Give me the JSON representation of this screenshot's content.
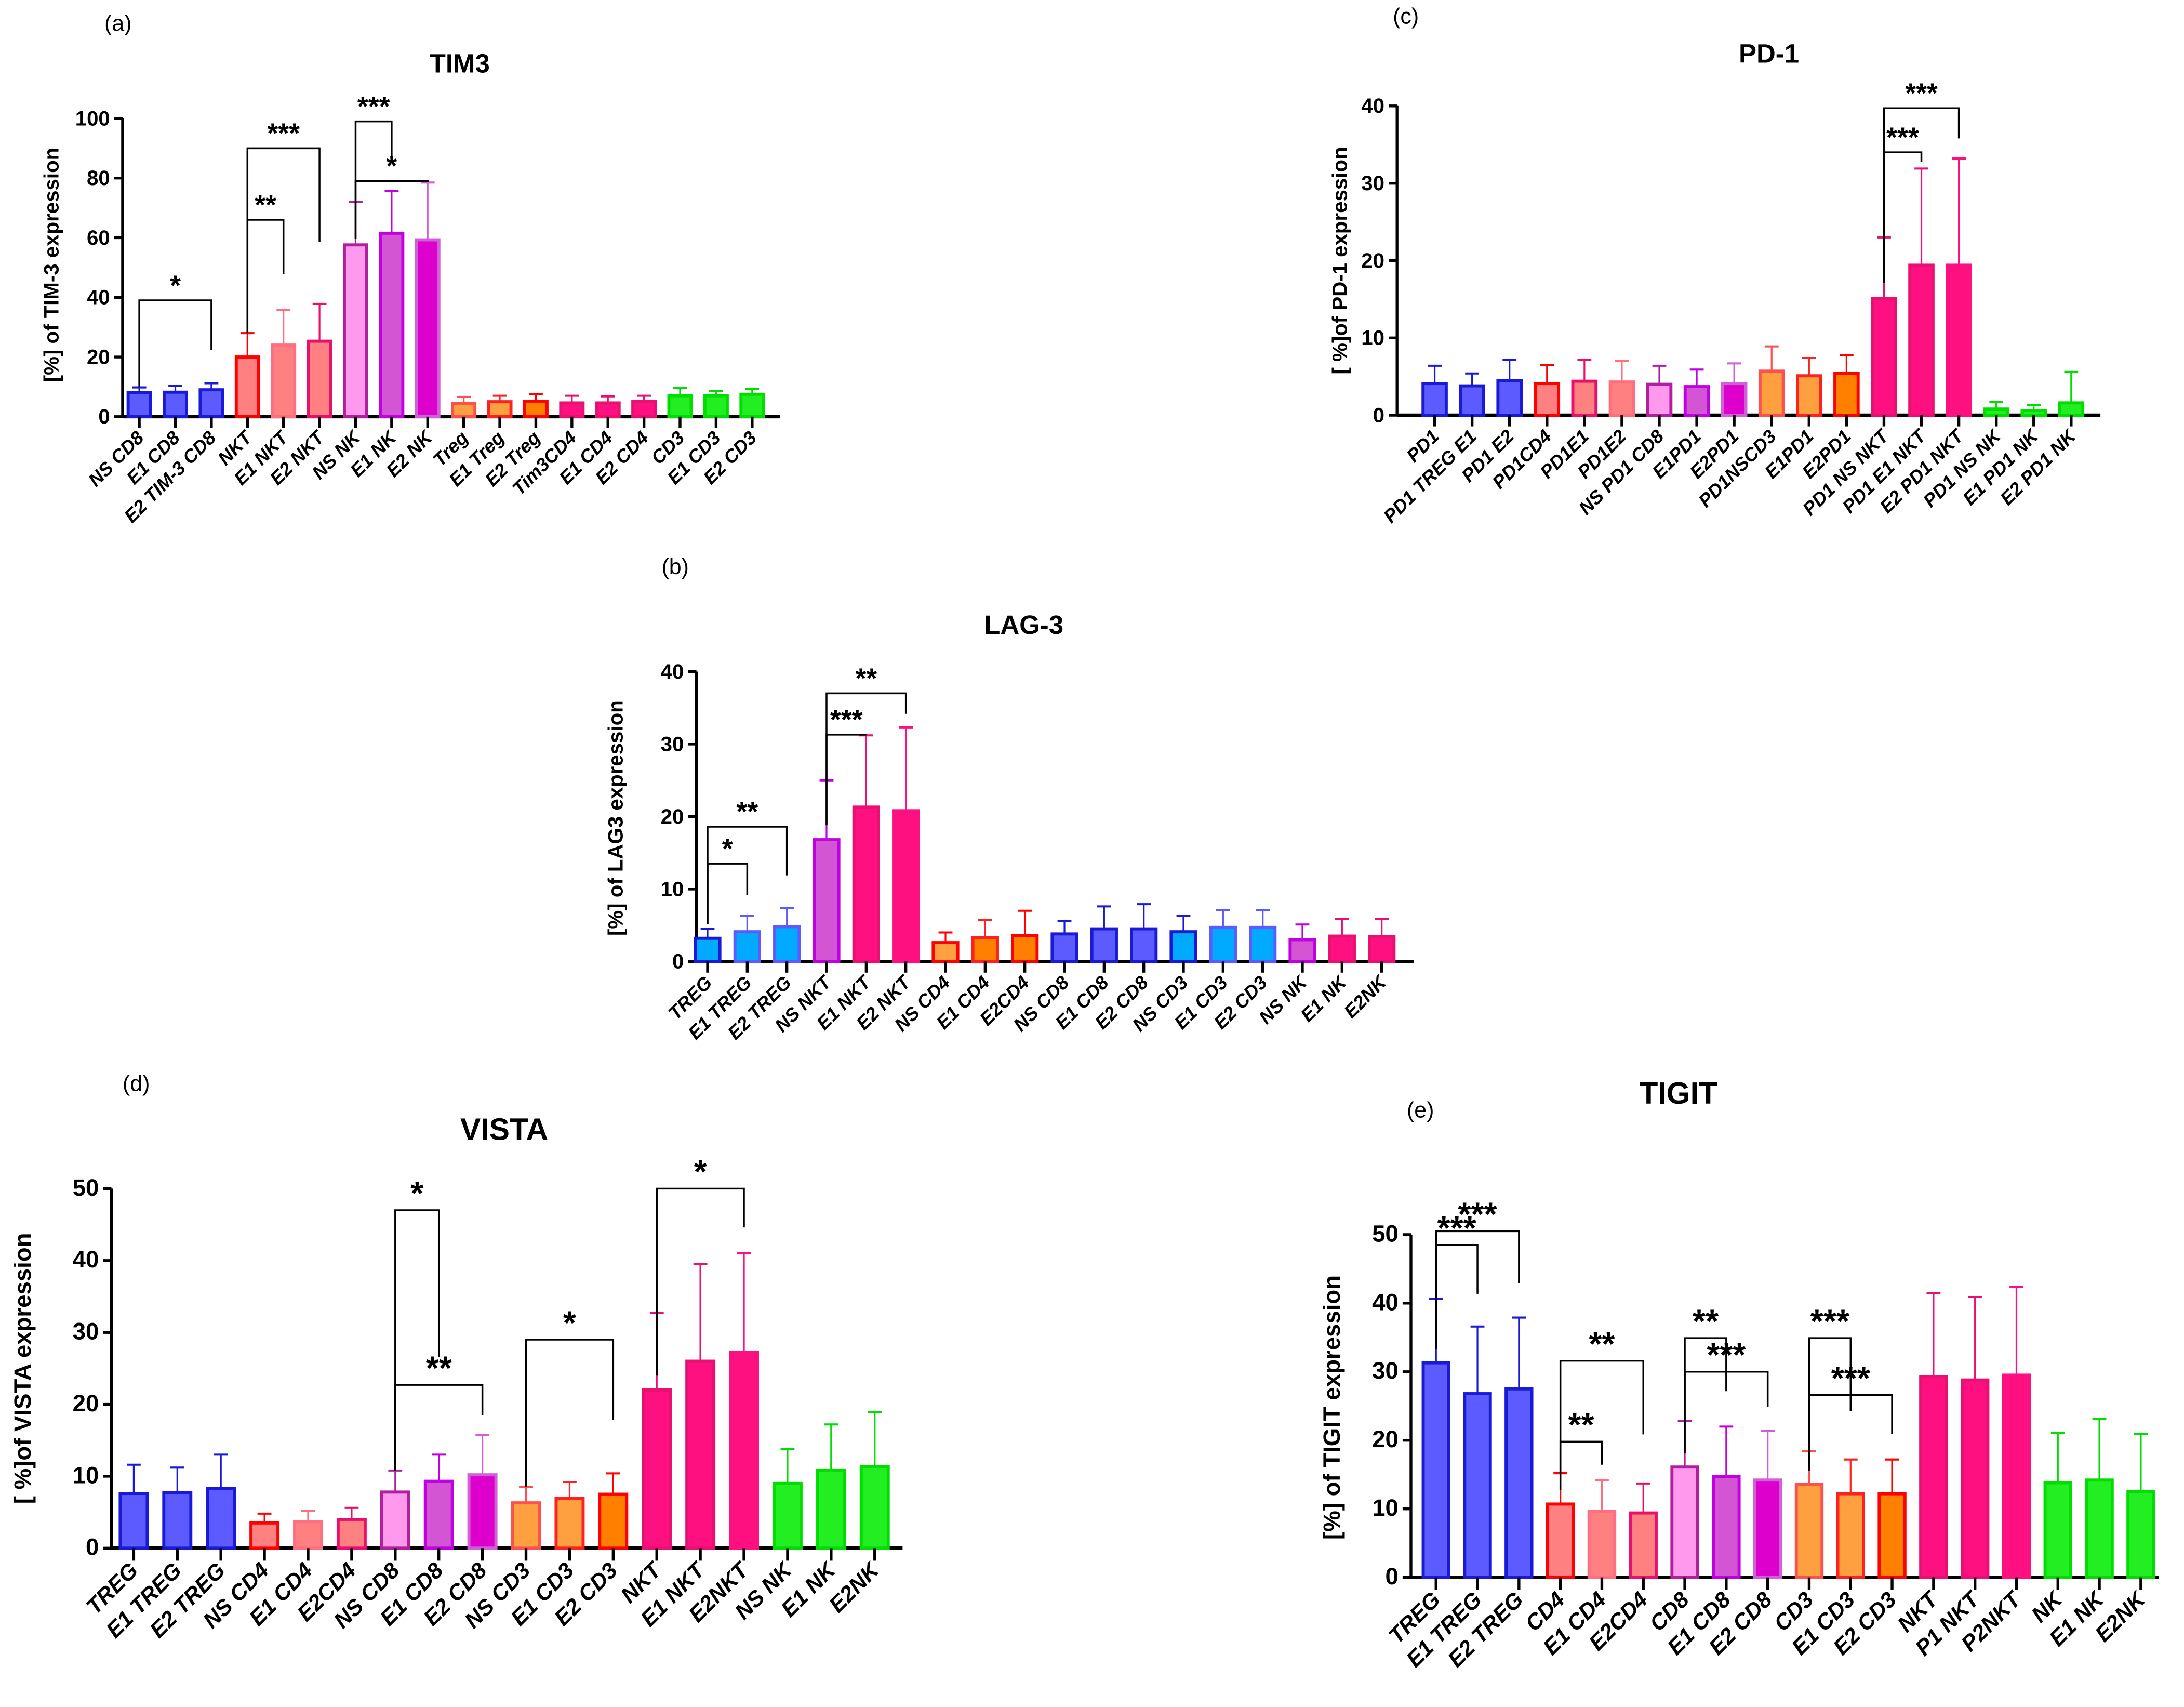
{
  "chart_data": [
    {
      "type": "bar",
      "panel_label": "(a)",
      "title": "TIM3",
      "ylabel": "[%] of TIM-3 expression",
      "ylim": [
        0,
        100
      ],
      "yticks": [
        "0",
        "20",
        "40",
        "60",
        "80",
        "100"
      ],
      "categories": [
        "NS CD8",
        "E1 CD8",
        "E2 TIM-3 CD8",
        "NKT",
        "E1 NKT",
        "E2 NKT",
        "NS NK",
        "E1 NK",
        "E2  NK",
        "Treg",
        "E1 Treg",
        "E2 Treg",
        "Tim3CD4",
        "E1 CD4",
        "E2 CD4",
        "CD3",
        "E1 CD3",
        "E2 CD3"
      ],
      "values": [
        8,
        8.2,
        9,
        20,
        24,
        25.3,
        57.6,
        61.5,
        59.3,
        4.5,
        5,
        5.2,
        4.6,
        4.6,
        5.2,
        7,
        7,
        7.5
      ],
      "error_upper": [
        9.8,
        10.3,
        11.2,
        28,
        35.7,
        37.8,
        72,
        75.6,
        78.5,
        6.6,
        7,
        7.6,
        7,
        6.8,
        7,
        9.6,
        8.6,
        9.2
      ],
      "fill": [
        "#5b5bff",
        "#5b5bff",
        "#5b5bff",
        "#ff8080",
        "#ff8080",
        "#ff8080",
        "#ff99ee",
        "#d455d4",
        "#dd00cc",
        "#ffa040",
        "#ffa040",
        "#ff8000",
        "#ff1080",
        "#ff1080",
        "#ff1080",
        "#22ee22",
        "#22ee22",
        "#22ee22"
      ],
      "stroke": [
        "#1a1ad6",
        "#1a1ad6",
        "#1a1ad6",
        "#ff0000",
        "#ff6f80",
        "#e8106b",
        "#b0209c",
        "#c000e0",
        "#d060d8",
        "#ff5050",
        "#ff2020",
        "#ff0000",
        "#e81070",
        "#e81070",
        "#e81070",
        "#00dd00",
        "#00dd00",
        "#00dd00"
      ],
      "significance": [
        {
          "from": 0,
          "to": 2,
          "label": "*",
          "y": 39
        },
        {
          "from": 3,
          "to": 4,
          "label": "**",
          "y": 66
        },
        {
          "from": 3,
          "to": 5,
          "label": "***",
          "y": 90
        },
        {
          "from": 6,
          "to": 7,
          "label": "***",
          "y": 99
        },
        {
          "from": 6,
          "to": 8,
          "label": "*",
          "y": 79
        }
      ]
    },
    {
      "type": "bar",
      "panel_label": "(c)",
      "title": "PD-1",
      "ylabel": "[ %]of PD-1 expression",
      "ylim": [
        0,
        40
      ],
      "yticks": [
        "0",
        "10",
        "20",
        "30",
        "40"
      ],
      "categories": [
        "PD1",
        "PD1 TREG E1",
        "PD1 E2",
        "PD1CD4",
        "PD1E1",
        "PD1E2",
        "NS PD1 CD8",
        "E1PD1",
        "E2PD1",
        "PD1NSCD3",
        "E1PD1",
        "E2PD1",
        "PD1 NS NKT",
        "PD1 E1  NKT",
        "E2 PD1 NKT",
        "PD1 NS NK",
        "E1 PD1 NK",
        "E2 PD1 NK"
      ],
      "values": [
        4.1,
        3.8,
        4.5,
        4.1,
        4.4,
        4.3,
        4.0,
        3.7,
        4.1,
        5.7,
        5.1,
        5.4,
        15.1,
        19.4,
        19.4,
        0.8,
        0.6,
        1.6
      ],
      "error_upper": [
        6.4,
        5.4,
        7.2,
        6.5,
        7.2,
        7.0,
        6.4,
        5.9,
        6.7,
        8.9,
        7.4,
        7.8,
        23.0,
        31.9,
        33.2,
        1.7,
        1.3,
        5.6
      ],
      "fill": [
        "#5b5bff",
        "#5b5bff",
        "#5b5bff",
        "#ff8080",
        "#ff8080",
        "#ff8080",
        "#ff99ee",
        "#d455d4",
        "#dd00cc",
        "#ffa040",
        "#ffa040",
        "#ff8000",
        "#ff1080",
        "#ff1080",
        "#ff1080",
        "#22ee22",
        "#22ee22",
        "#22ee22"
      ],
      "stroke": [
        "#1a1ad6",
        "#1a1ad6",
        "#1a1ad6",
        "#ff0000",
        "#e8106b",
        "#ff6f80",
        "#b0209c",
        "#c000e0",
        "#d060d8",
        "#ff5050",
        "#ff2020",
        "#ff0000",
        "#e81070",
        "#e81070",
        "#ff1080",
        "#00dd00",
        "#00dd00",
        "#00dd00"
      ],
      "significance": [
        {
          "from": 12,
          "to": 13,
          "label": "***",
          "y": 34
        },
        {
          "from": 12,
          "to": 14,
          "label": "***",
          "y": 39.7
        }
      ]
    },
    {
      "type": "bar",
      "panel_label": "(b)",
      "title": "LAG-3",
      "ylabel": "[%] of LAG3 expression",
      "ylim": [
        0,
        40
      ],
      "yticks": [
        "0",
        "10",
        "20",
        "30",
        "40"
      ],
      "categories": [
        "TREG",
        "E1 TREG",
        "E2 TREG",
        "NS NKT",
        "E1 NKT",
        "E2 NKT",
        "NS CD4",
        "E1 CD4",
        "E2CD4",
        "NS CD8",
        "E1 CD8",
        "E2 CD8",
        "NS CD3",
        "E1 CD3",
        "E2 CD3",
        "NS NK",
        "E1 NK",
        "E2NK"
      ],
      "values": [
        3.2,
        4.1,
        4.8,
        16.8,
        21.3,
        20.8,
        2.6,
        3.3,
        3.6,
        3.8,
        4.5,
        4.5,
        4.1,
        4.7,
        4.7,
        3.0,
        3.5,
        3.4
      ],
      "error_upper": [
        4.5,
        6.3,
        7.4,
        25.0,
        31.2,
        32.3,
        4.0,
        5.7,
        7.0,
        5.6,
        7.6,
        7.9,
        6.3,
        7.1,
        7.1,
        5.1,
        5.9,
        5.9
      ],
      "fill": [
        "#00aaff",
        "#00aaff",
        "#00aaff",
        "#d455d4",
        "#ff1080",
        "#ff1080",
        "#ffa040",
        "#ff8000",
        "#ff8000",
        "#5b5bff",
        "#5b5bff",
        "#5b5bff",
        "#00aaff",
        "#00aaff",
        "#00aaff",
        "#d455d4",
        "#ff1080",
        "#ff1080"
      ],
      "stroke": [
        "#1a1ad6",
        "#5b5bff",
        "#5b5bff",
        "#c000e0",
        "#e81070",
        "#ff1080",
        "#ff0000",
        "#ff2020",
        "#ff0000",
        "#1a1ad6",
        "#1a1ad6",
        "#1a1ad6",
        "#1a1ad6",
        "#5b5bff",
        "#5b5bff",
        "#c000e0",
        "#e81070",
        "#e81070"
      ],
      "significance": [
        {
          "from": 0,
          "to": 1,
          "label": "*",
          "y": 13.5
        },
        {
          "from": 0,
          "to": 2,
          "label": "**",
          "y": 18.6
        },
        {
          "from": 3,
          "to": 4,
          "label": "***",
          "y": 31.3
        },
        {
          "from": 3,
          "to": 5,
          "label": "**",
          "y": 37
        }
      ]
    },
    {
      "type": "bar",
      "panel_label": "(d)",
      "title": "VISTA",
      "ylabel": "[ %]of VISTA expression",
      "ylim": [
        0,
        50
      ],
      "yticks": [
        "0",
        "10",
        "20",
        "30",
        "40",
        "50"
      ],
      "categories": [
        "TREG",
        "E1 TREG",
        "E2 TREG",
        "NS CD4",
        "E1 CD4",
        "E2CD4",
        "NS CD8",
        "E1 CD8",
        "E2 CD8",
        "NS CD3",
        "E1 CD3",
        "E2 CD3",
        "NKT",
        "E1 NKT",
        "E2NKT",
        "NS NK",
        "E1 NK",
        "E2NK"
      ],
      "values": [
        7.6,
        7.7,
        8.3,
        3.5,
        3.7,
        4.0,
        7.8,
        9.3,
        10.2,
        6.3,
        6.9,
        7.5,
        22.0,
        26.0,
        27.2,
        9.0,
        10.8,
        11.3
      ],
      "error_upper": [
        11.6,
        11.2,
        13.0,
        4.8,
        5.2,
        5.6,
        10.8,
        13.0,
        15.7,
        8.5,
        9.2,
        10.4,
        32.7,
        39.5,
        41.0,
        13.8,
        17.2,
        18.9
      ],
      "fill": [
        "#5b5bff",
        "#5b5bff",
        "#5b5bff",
        "#ff8080",
        "#ff8080",
        "#ff8080",
        "#ff99ee",
        "#d455d4",
        "#dd00cc",
        "#ffa040",
        "#ffa040",
        "#ff8000",
        "#ff1080",
        "#ff1080",
        "#ff1080",
        "#22ee22",
        "#22ee22",
        "#22ee22"
      ],
      "stroke": [
        "#1a1ad6",
        "#1a1ad6",
        "#1a1ad6",
        "#ff0000",
        "#ff6f80",
        "#e8106b",
        "#b0209c",
        "#c000e0",
        "#d060d8",
        "#ff5050",
        "#ff2020",
        "#ff0000",
        "#e81070",
        "#e81070",
        "#ff1080",
        "#00dd00",
        "#00dd00",
        "#00dd00"
      ],
      "significance": [
        {
          "from": 6,
          "to": 7,
          "label": "*",
          "y": 47
        },
        {
          "from": 6,
          "to": 8,
          "label": "**",
          "y": 22.7
        },
        {
          "from": 9,
          "to": 11,
          "label": "*",
          "y": 29
        },
        {
          "from": 12,
          "to": 14,
          "label": "*",
          "y": 50
        }
      ]
    },
    {
      "type": "bar",
      "panel_label": "(e)",
      "title": "TIGIT",
      "ylabel": "[%] of TIGIT expression",
      "ylim": [
        0,
        50
      ],
      "yticks": [
        "0",
        "10",
        "20",
        "30",
        "40",
        "50"
      ],
      "categories": [
        "TREG",
        "E1 TREG",
        "E2 TREG",
        "CD4",
        "E1 CD4",
        "E2CD4",
        "CD8",
        "E1 CD8",
        "E2 CD8",
        "CD3",
        "E1 CD3",
        "E2 CD3",
        "NKT",
        "P1 NKT",
        "P2NKT",
        "NK",
        "E1 NK",
        "E2NK"
      ],
      "values": [
        31.3,
        26.8,
        27.5,
        10.7,
        9.6,
        9.4,
        16.1,
        14.7,
        14.2,
        13.6,
        12.2,
        12.2,
        29.3,
        28.8,
        29.5,
        13.8,
        14.2,
        12.5
      ],
      "error_upper": [
        40.6,
        36.6,
        37.9,
        15.2,
        14.2,
        13.7,
        22.8,
        22.0,
        21.4,
        18.4,
        17.2,
        17.2,
        41.5,
        40.9,
        42.4,
        21.1,
        23.1,
        20.9
      ],
      "fill": [
        "#5b5bff",
        "#5b5bff",
        "#5b5bff",
        "#ff8080",
        "#ff8080",
        "#ff8080",
        "#ff99ee",
        "#d455d4",
        "#dd00cc",
        "#ffa040",
        "#ffa040",
        "#ff8000",
        "#ff1080",
        "#ff1080",
        "#ff1080",
        "#22ee22",
        "#22ee22",
        "#22ee22"
      ],
      "stroke": [
        "#1a1ad6",
        "#1a1ad6",
        "#1a1ad6",
        "#ff0000",
        "#ff6f80",
        "#e8106b",
        "#b0209c",
        "#c000e0",
        "#d060d8",
        "#ff5050",
        "#ff2020",
        "#ff0000",
        "#e81070",
        "#e81070",
        "#ff1080",
        "#00dd00",
        "#00dd00",
        "#00dd00"
      ],
      "significance": [
        {
          "from": 0,
          "to": 1,
          "label": "***",
          "y": 48.5
        },
        {
          "from": 0,
          "to": 2,
          "label": "***",
          "y": 50.5
        },
        {
          "from": 3,
          "to": 4,
          "label": "**",
          "y": 19.8
        },
        {
          "from": 3,
          "to": 5,
          "label": "**",
          "y": 31.6
        },
        {
          "from": 6,
          "to": 7,
          "label": "**",
          "y": 34.9
        },
        {
          "from": 6,
          "to": 8,
          "label": "***",
          "y": 30
        },
        {
          "from": 9,
          "to": 10,
          "label": "***",
          "y": 34.9
        },
        {
          "from": 9,
          "to": 11,
          "label": "***",
          "y": 26.6
        }
      ]
    }
  ]
}
